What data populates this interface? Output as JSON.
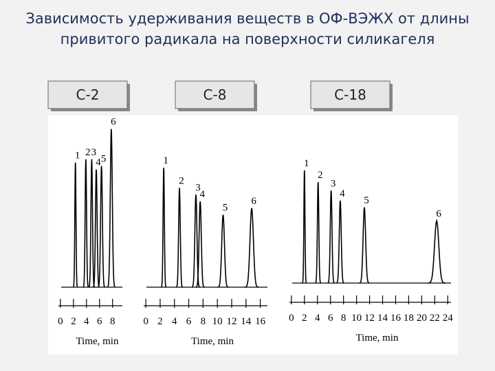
{
  "title": [
    "Зависимость удерживания веществ в ОФ-ВЭЖХ от длины",
    "привитого радикала на поверхности силикагеля"
  ],
  "chart_data": [
    {
      "type": "peaks",
      "title": "C-2",
      "x_label": "Time, min",
      "categories": [
        "1",
        "2",
        "3",
        "4",
        "5",
        "6"
      ],
      "x": [
        2.3,
        3.9,
        4.8,
        5.5,
        6.3,
        7.8
      ],
      "values": [
        74,
        76,
        76,
        70,
        72,
        94
      ],
      "xlim": [
        -0.3,
        9.5
      ],
      "xticks": [
        0,
        2,
        4,
        6,
        8
      ],
      "ylim": [
        0,
        100
      ],
      "color": "#000000"
    },
    {
      "type": "peaks",
      "title": "C-8",
      "x_label": "Time, min",
      "categories": [
        "1",
        "2",
        "3",
        "4",
        "5",
        "6"
      ],
      "x": [
        2.5,
        4.7,
        7.0,
        7.6,
        10.8,
        14.8
      ],
      "values": [
        71,
        59,
        55,
        51,
        43,
        47
      ],
      "xlim": [
        -0.3,
        17
      ],
      "xticks": [
        0,
        2,
        4,
        6,
        8,
        10,
        12,
        14,
        16
      ],
      "ylim": [
        0,
        100
      ],
      "color": "#000000"
    },
    {
      "type": "peaks",
      "title": "C-18",
      "x_label": "Time, min",
      "categories": [
        "1",
        "2",
        "3",
        "4",
        "5",
        "6"
      ],
      "x": [
        2.0,
        4.1,
        6.1,
        7.5,
        11.2,
        22.3
      ],
      "values": [
        67,
        60,
        55,
        49,
        45,
        37
      ],
      "xlim": [
        -0.3,
        24.5
      ],
      "xticks": [
        0,
        2,
        4,
        6,
        8,
        10,
        12,
        14,
        16,
        18,
        20,
        22,
        24
      ],
      "ylim": [
        0,
        100
      ],
      "color": "#000000"
    }
  ]
}
